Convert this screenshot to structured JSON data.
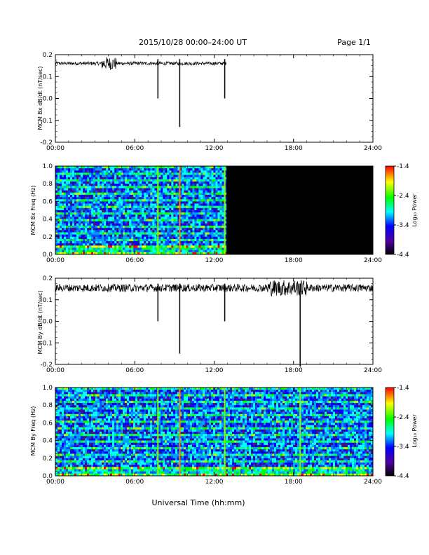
{
  "header": {
    "title": "2015/10/28  00:00–24:00 UT",
    "page": "Page 1/1"
  },
  "footer": {
    "xlabel": "Universal Time (hh:mm)"
  },
  "colorbar": {
    "label": "Log₁₀ Power",
    "ticks": [
      "-1.4",
      "-2.4",
      "-3.4",
      "-4.4"
    ],
    "colors": [
      "#ff0000",
      "#ffff00",
      "#00ff00",
      "#00ffff",
      "#0000ff",
      "#5000a0",
      "#000000"
    ]
  },
  "chart_data": [
    {
      "type": "line",
      "ylabel": "MCM Bx dB/dt (nT/sec)",
      "xlim": [
        0,
        24
      ],
      "ylim": [
        -0.2,
        0.2
      ],
      "x_ticks": [
        "00:00",
        "06:00",
        "12:00",
        "18:00",
        "24:00"
      ],
      "y_ticks": [
        "0.2",
        "0.1",
        "0.0",
        "-0.1",
        "-0.2"
      ],
      "baseline": 0.16,
      "data_end_hour": 12.9,
      "spikes": [
        {
          "hour": 7.75,
          "min": 0.0
        },
        {
          "hour": 9.4,
          "min": -0.13
        },
        {
          "hour": 12.8,
          "min": 0.0
        }
      ]
    },
    {
      "type": "heatmap",
      "ylabel": "MCM Bx Freq (Hz)",
      "xlim": [
        0,
        24
      ],
      "ylim": [
        0,
        1
      ],
      "x_ticks": [
        "00:00",
        "06:00",
        "12:00",
        "18:00",
        "24:00"
      ],
      "y_ticks": [
        "1.0",
        "0.8",
        "0.6",
        "0.4",
        "0.2",
        "0.0"
      ],
      "data_end_hour": 12.9,
      "colorbar_range": [
        -4.4,
        -1.4
      ]
    },
    {
      "type": "line",
      "ylabel": "MCM By dB/dt (nT/sec)",
      "xlim": [
        0,
        24
      ],
      "ylim": [
        -0.2,
        0.2
      ],
      "x_ticks": [
        "00:00",
        "06:00",
        "12:00",
        "18:00",
        "24:00"
      ],
      "y_ticks": [
        "0.2",
        "0.1",
        "0.0",
        "-0.1",
        "-0.2"
      ],
      "baseline": 0.155,
      "data_end_hour": 24,
      "spikes": [
        {
          "hour": 7.75,
          "min": 0.0
        },
        {
          "hour": 9.4,
          "min": -0.15
        },
        {
          "hour": 12.8,
          "min": 0.0
        },
        {
          "hour": 18.5,
          "min": -0.21
        }
      ]
    },
    {
      "type": "heatmap",
      "ylabel": "MCM By Freq (Hz)",
      "xlim": [
        0,
        24
      ],
      "ylim": [
        0,
        1
      ],
      "x_ticks": [
        "00:00",
        "06:00",
        "12:00",
        "18:00",
        "24:00"
      ],
      "y_ticks": [
        "1.0",
        "0.8",
        "0.6",
        "0.4",
        "0.2",
        "0.0"
      ],
      "data_end_hour": 24,
      "colorbar_range": [
        -4.4,
        -1.4
      ]
    }
  ]
}
